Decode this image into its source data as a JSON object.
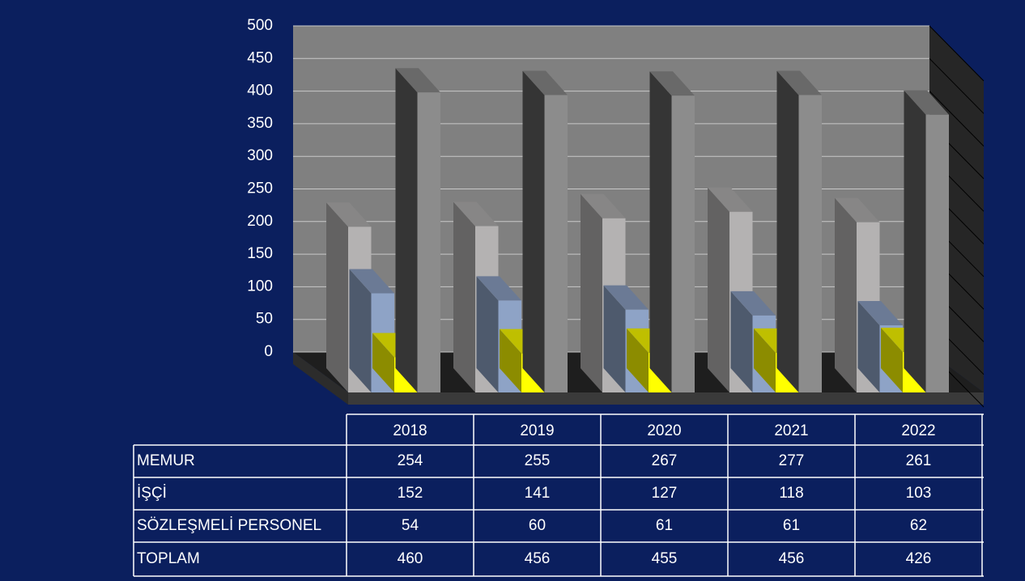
{
  "chart_data": {
    "type": "bar3d",
    "categories": [
      "2018",
      "2019",
      "2020",
      "2021",
      "2022"
    ],
    "series": [
      {
        "name": "MEMUR",
        "color": "#b4b2b2",
        "values": [
          254,
          255,
          267,
          277,
          261
        ]
      },
      {
        "name": "İŞÇİ",
        "color": "#8ea3c6",
        "values": [
          152,
          141,
          127,
          118,
          103
        ]
      },
      {
        "name": "SÖZLEŞMELİ PERSONEL",
        "color": "#ffff00",
        "values": [
          54,
          60,
          61,
          61,
          62
        ]
      },
      {
        "name": "TOPLAM",
        "color": "#8c8c8c",
        "values": [
          460,
          456,
          455,
          456,
          426
        ]
      }
    ],
    "ylim": [
      0,
      500
    ],
    "yticks": [
      0,
      50,
      100,
      150,
      200,
      250,
      300,
      350,
      400,
      450,
      500
    ],
    "grid": true
  }
}
